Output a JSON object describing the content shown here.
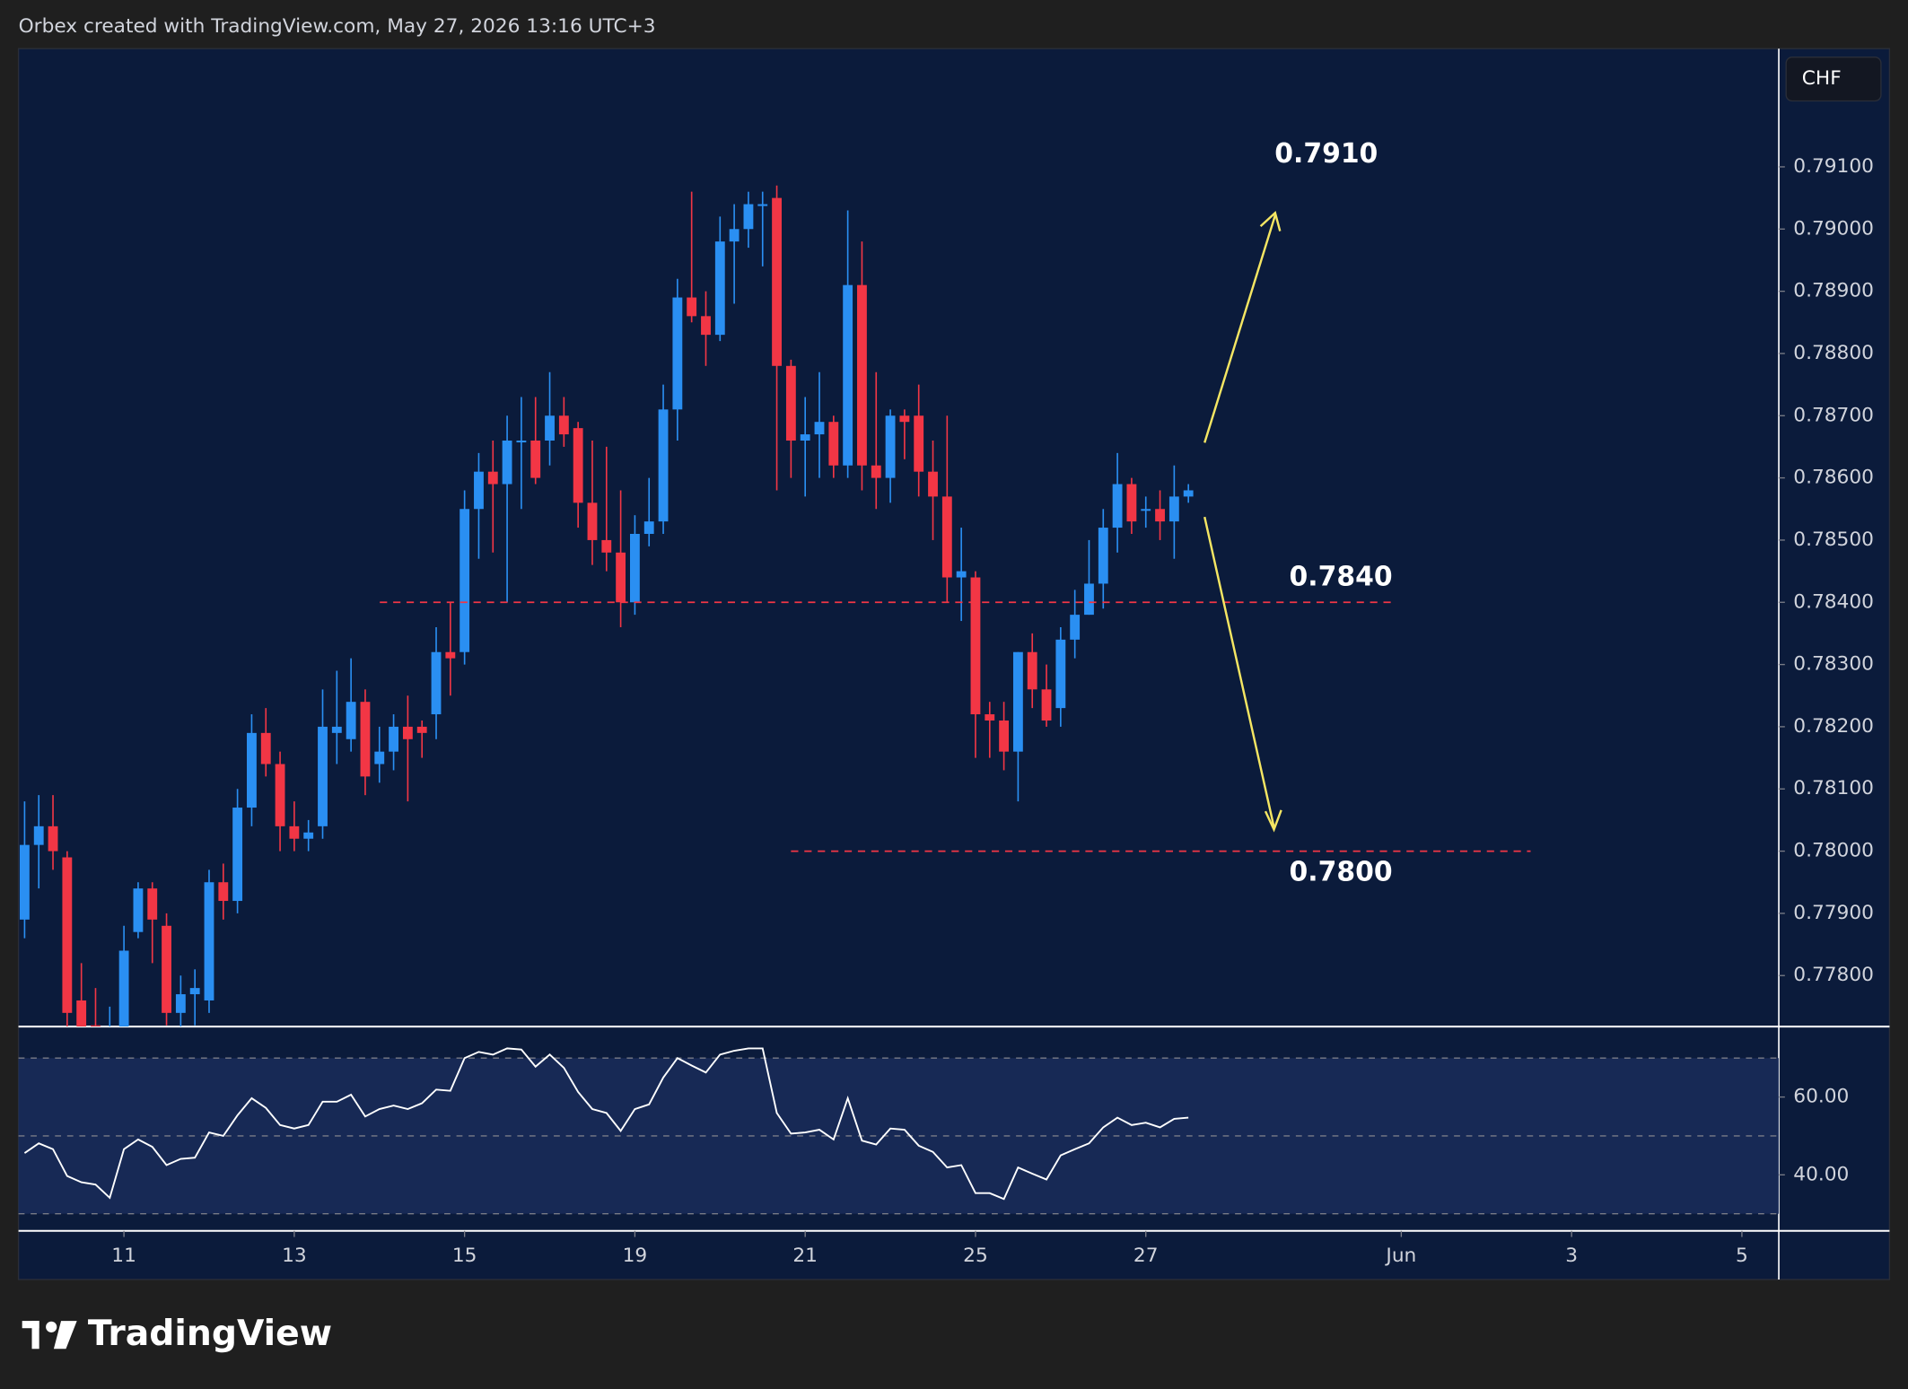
{
  "header": "Orbex created with TradingView.com, May 27, 2026 13:16 UTC+3",
  "currency": "CHF",
  "brand": "TradingView",
  "chart_data": [
    {
      "type": "candlestick",
      "open": [
        0.7789,
        0.7801,
        0.7804,
        0.7799,
        0.7776,
        0.7772,
        0.777,
        0.7768,
        0.7787,
        0.7794,
        0.7788,
        0.7774,
        0.7777,
        0.7776,
        0.7795,
        0.7792,
        0.7807,
        0.7819,
        0.7814,
        0.7804,
        0.7802,
        0.7804,
        0.7819,
        0.7818,
        0.7824,
        0.7814,
        0.7816,
        0.782,
        0.782,
        0.7822,
        0.7832,
        0.7832,
        0.7855,
        0.7861,
        0.7859,
        0.7866,
        0.7866,
        0.7866,
        0.787,
        0.7868,
        0.7856,
        0.785,
        0.7848,
        0.784,
        0.7851,
        0.7853,
        0.7871,
        0.7889,
        0.7886,
        0.7883,
        0.7898,
        0.79,
        0.7904,
        0.7905,
        0.7878,
        0.7866,
        0.7867,
        0.7869,
        0.7862,
        0.7891,
        0.7862,
        0.786,
        0.787,
        0.787,
        0.7861,
        0.7857,
        0.7844,
        0.7844,
        0.7822,
        0.7821,
        0.7816,
        0.7832,
        0.7826,
        0.7823,
        0.7834,
        0.7838,
        0.7843,
        0.7852,
        0.7859,
        0.7855,
        0.7855,
        0.7853,
        0.7857
      ],
      "high": [
        0.7808,
        0.7809,
        0.7809,
        0.78,
        0.7782,
        0.7778,
        0.7775,
        0.7788,
        0.7795,
        0.7795,
        0.779,
        0.778,
        0.7781,
        0.7797,
        0.7798,
        0.781,
        0.7822,
        0.7823,
        0.7816,
        0.7808,
        0.7805,
        0.7826,
        0.7829,
        0.7831,
        0.7826,
        0.782,
        0.7822,
        0.7825,
        0.7821,
        0.7836,
        0.784,
        0.7858,
        0.7864,
        0.7866,
        0.787,
        0.7873,
        0.7873,
        0.7877,
        0.7873,
        0.7869,
        0.7866,
        0.7865,
        0.7858,
        0.7854,
        0.786,
        0.7875,
        0.7892,
        0.7906,
        0.789,
        0.7902,
        0.7904,
        0.7906,
        0.7906,
        0.7907,
        0.7879,
        0.7873,
        0.7877,
        0.787,
        0.7903,
        0.7898,
        0.7877,
        0.7871,
        0.7871,
        0.7875,
        0.7866,
        0.787,
        0.7852,
        0.7845,
        0.7824,
        0.7824,
        0.7832,
        0.7835,
        0.783,
        0.7836,
        0.7842,
        0.785,
        0.7855,
        0.7864,
        0.786,
        0.7857,
        0.7858,
        0.7862,
        0.7859
      ],
      "low": [
        0.7786,
        0.7794,
        0.7797,
        0.777,
        0.7768,
        0.7765,
        0.7766,
        0.7765,
        0.7786,
        0.7782,
        0.7772,
        0.777,
        0.7772,
        0.7774,
        0.7789,
        0.779,
        0.7804,
        0.7812,
        0.78,
        0.78,
        0.78,
        0.7802,
        0.7814,
        0.7816,
        0.7809,
        0.7811,
        0.7813,
        0.7808,
        0.7815,
        0.7818,
        0.7825,
        0.783,
        0.7847,
        0.7848,
        0.784,
        0.7855,
        0.7859,
        0.7862,
        0.7865,
        0.7852,
        0.7846,
        0.7845,
        0.7836,
        0.7838,
        0.7849,
        0.7851,
        0.7866,
        0.7885,
        0.7878,
        0.7882,
        0.7888,
        0.7897,
        0.7894,
        0.7858,
        0.786,
        0.7857,
        0.786,
        0.786,
        0.786,
        0.7858,
        0.7855,
        0.7856,
        0.7863,
        0.7857,
        0.785,
        0.784,
        0.7837,
        0.7815,
        0.7815,
        0.7813,
        0.7808,
        0.7823,
        0.782,
        0.782,
        0.7831,
        0.7838,
        0.7839,
        0.7848,
        0.7851,
        0.7852,
        0.785,
        0.7847,
        0.7856
      ],
      "close": [
        0.7801,
        0.7804,
        0.78,
        0.7774,
        0.777,
        0.7768,
        0.7771,
        0.7784,
        0.7794,
        0.7789,
        0.7774,
        0.7777,
        0.7778,
        0.7795,
        0.7792,
        0.7807,
        0.7819,
        0.7814,
        0.7804,
        0.7802,
        0.7803,
        0.782,
        0.782,
        0.7824,
        0.7812,
        0.7816,
        0.782,
        0.7818,
        0.7819,
        0.7832,
        0.7831,
        0.7855,
        0.7861,
        0.7859,
        0.7866,
        0.7866,
        0.786,
        0.787,
        0.7867,
        0.7856,
        0.785,
        0.7848,
        0.784,
        0.7851,
        0.7853,
        0.7871,
        0.7889,
        0.7886,
        0.7883,
        0.7898,
        0.79,
        0.7904,
        0.7904,
        0.7878,
        0.7866,
        0.7867,
        0.7869,
        0.7862,
        0.7891,
        0.7862,
        0.786,
        0.787,
        0.7869,
        0.7861,
        0.7857,
        0.7844,
        0.7845,
        0.7822,
        0.7821,
        0.7816,
        0.7832,
        0.7826,
        0.7821,
        0.7834,
        0.7838,
        0.7843,
        0.7852,
        0.7859,
        0.7853,
        0.7855,
        0.7853,
        0.7857,
        0.7858
      ],
      "up_color": "#2a8ff2",
      "down_color": "#f23645",
      "ylim": [
        0.7772,
        0.7929
      ],
      "yticks": [
        {
          "value": 0.778,
          "label": "0.77800"
        },
        {
          "value": 0.779,
          "label": "0.77900"
        },
        {
          "value": 0.78,
          "label": "0.78000"
        },
        {
          "value": 0.781,
          "label": "0.78100"
        },
        {
          "value": 0.782,
          "label": "0.78200"
        },
        {
          "value": 0.783,
          "label": "0.78300"
        },
        {
          "value": 0.784,
          "label": "0.78400"
        },
        {
          "value": 0.785,
          "label": "0.78500"
        },
        {
          "value": 0.786,
          "label": "0.78600"
        },
        {
          "value": 0.787,
          "label": "0.78700"
        },
        {
          "value": 0.788,
          "label": "0.78800"
        },
        {
          "value": 0.789,
          "label": "0.78900"
        },
        {
          "value": 0.79,
          "label": "0.79000"
        },
        {
          "value": 0.791,
          "label": "0.79100"
        }
      ],
      "xlim": [
        -0.43,
        123.6
      ],
      "xticks": [
        {
          "value": 7,
          "label": "11"
        },
        {
          "value": 19,
          "label": "13"
        },
        {
          "value": 31,
          "label": "15"
        },
        {
          "value": 43,
          "label": "19"
        },
        {
          "value": 55,
          "label": "21"
        },
        {
          "value": 67,
          "label": "25"
        },
        {
          "value": 79,
          "label": "27"
        },
        {
          "value": 97,
          "label": "Jun"
        },
        {
          "value": 109,
          "label": "3"
        },
        {
          "value": 121,
          "label": "5"
        }
      ],
      "annotations": [
        {
          "value": 0.791,
          "label": "0.7910"
        },
        {
          "value": 0.784,
          "label": "0.7840"
        },
        {
          "value": 0.78,
          "label": "0.7800"
        }
      ]
    },
    {
      "type": "line",
      "values": [
        45.6,
        48.1,
        46.6,
        39.7,
        38.1,
        37.5,
        34.1,
        46.6,
        49.1,
        47.2,
        42.5,
        44.1,
        44.4,
        50.9,
        50,
        55.3,
        59.7,
        57.2,
        52.8,
        51.9,
        52.8,
        58.8,
        58.8,
        60.6,
        55,
        56.9,
        57.8,
        56.9,
        58.4,
        61.9,
        61.6,
        70,
        71.6,
        70.9,
        72.5,
        72.2,
        67.8,
        70.9,
        67.5,
        61.3,
        56.9,
        55.9,
        51.3,
        56.9,
        58.1,
        65,
        70,
        68.1,
        66.3,
        70.9,
        71.9,
        72.5,
        72.5,
        55.9,
        50.6,
        50.9,
        51.6,
        49.1,
        59.7,
        48.8,
        47.8,
        51.9,
        51.6,
        47.5,
        45.9,
        41.9,
        42.5,
        35.3,
        35.3,
        33.8,
        41.9,
        40.3,
        38.8,
        45,
        46.6,
        48.1,
        52.2,
        54.7,
        52.8,
        53.4,
        52.2,
        54.4,
        54.7
      ],
      "color": "#ffffff",
      "ylim": [
        25.6,
        77.8
      ],
      "yticks": [
        {
          "value": 40,
          "label": "40.00"
        },
        {
          "value": 60,
          "label": "60.00"
        }
      ],
      "levels": [
        70,
        50,
        30
      ]
    }
  ]
}
